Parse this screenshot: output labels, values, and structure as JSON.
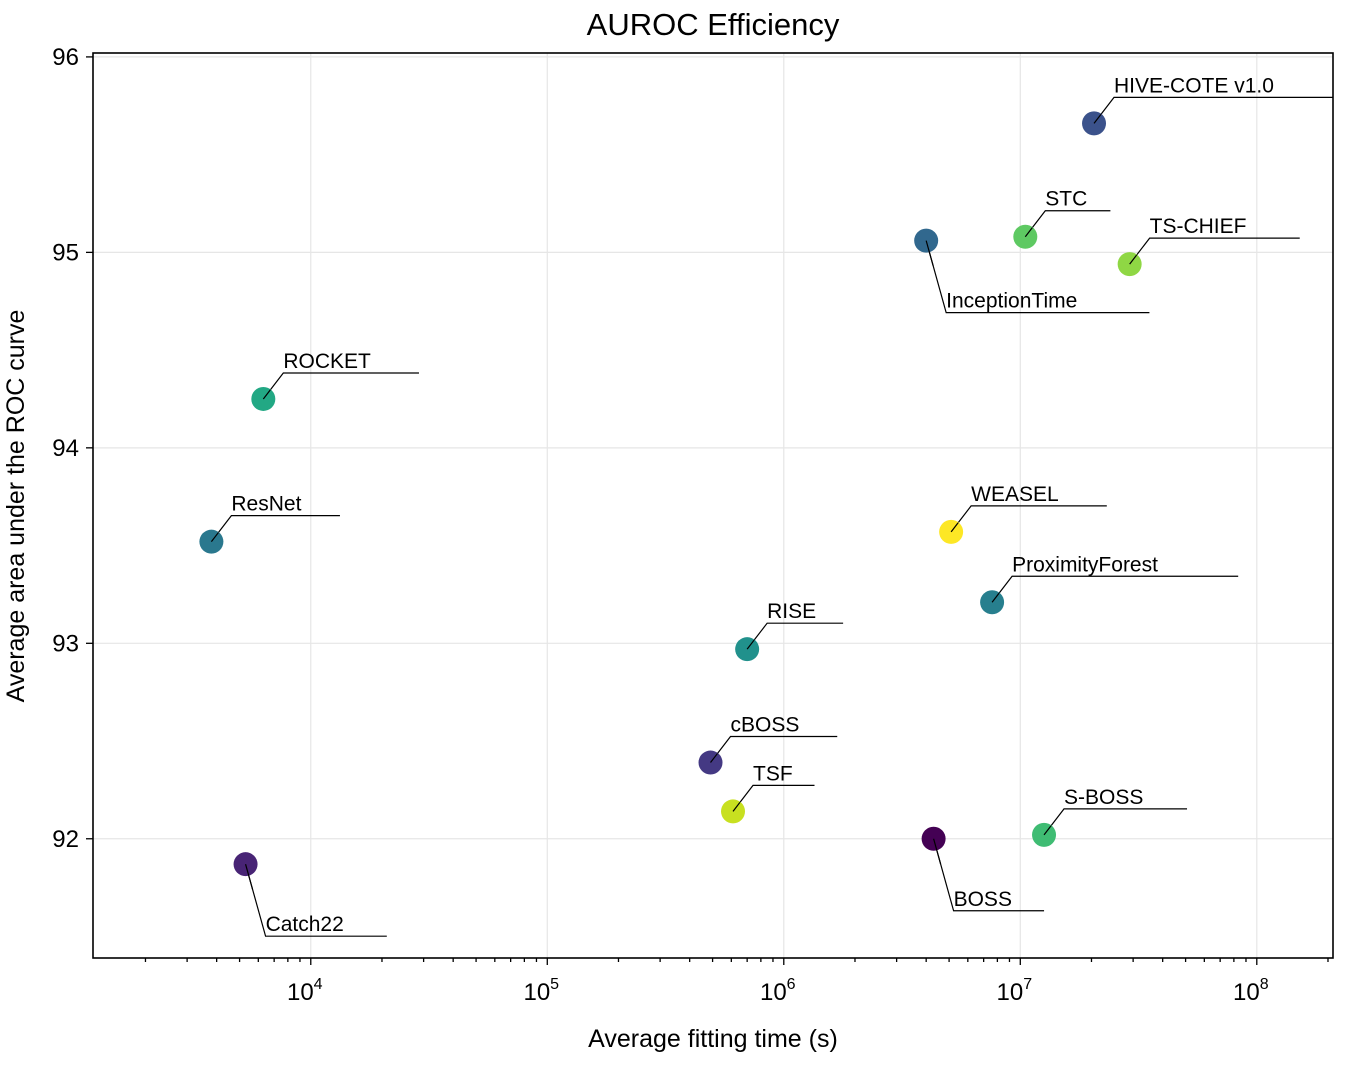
{
  "chart_data": {
    "type": "scatter",
    "title": "AUROC Efficiency",
    "xlabel": "Average fitting time (s)",
    "ylabel": "Average area under the ROC curve",
    "xscale": "log",
    "xlim": [
      1200,
      210000000
    ],
    "ylim": [
      91.39,
      96.02
    ],
    "grid": true,
    "xticks": [
      {
        "base": "10",
        "exp": "4",
        "value": 10000
      },
      {
        "base": "10",
        "exp": "5",
        "value": 100000
      },
      {
        "base": "10",
        "exp": "6",
        "value": 1000000
      },
      {
        "base": "10",
        "exp": "7",
        "value": 10000000
      },
      {
        "base": "10",
        "exp": "8",
        "value": 100000000
      }
    ],
    "yticks": [
      {
        "label": "92",
        "value": 92
      },
      {
        "label": "93",
        "value": 93
      },
      {
        "label": "94",
        "value": 94
      },
      {
        "label": "95",
        "value": 95
      },
      {
        "label": "96",
        "value": 96
      }
    ],
    "points": [
      {
        "name": "HIVE-COTE v1.0",
        "x": 20500000,
        "y": 95.66,
        "color": "#3b528b",
        "label_dir": "up"
      },
      {
        "name": "STC",
        "x": 10500000,
        "y": 95.08,
        "color": "#5ec962",
        "label_dir": "up"
      },
      {
        "name": "TS-CHIEF",
        "x": 29000000,
        "y": 94.94,
        "color": "#8fd744",
        "label_dir": "up"
      },
      {
        "name": "InceptionTime",
        "x": 4000000,
        "y": 95.06,
        "color": "#31688e",
        "label_dir": "down"
      },
      {
        "name": "ROCKET",
        "x": 6300,
        "y": 94.25,
        "color": "#22a884",
        "label_dir": "up"
      },
      {
        "name": "ResNet",
        "x": 3800,
        "y": 93.52,
        "color": "#2a788e",
        "label_dir": "up"
      },
      {
        "name": "WEASEL",
        "x": 5100000,
        "y": 93.57,
        "color": "#fde725",
        "label_dir": "up"
      },
      {
        "name": "ProximityForest",
        "x": 7600000,
        "y": 93.21,
        "color": "#277f8e",
        "label_dir": "up"
      },
      {
        "name": "RISE",
        "x": 700000,
        "y": 92.97,
        "color": "#21918c",
        "label_dir": "up"
      },
      {
        "name": "cBOSS",
        "x": 490000,
        "y": 92.39,
        "color": "#443983",
        "label_dir": "up"
      },
      {
        "name": "TSF",
        "x": 610000,
        "y": 92.14,
        "color": "#c8e020",
        "label_dir": "up"
      },
      {
        "name": "S-BOSS",
        "x": 12600000,
        "y": 92.02,
        "color": "#3fbc73",
        "label_dir": "up"
      },
      {
        "name": "BOSS",
        "x": 4300000,
        "y": 92.0,
        "color": "#440154",
        "label_dir": "down"
      },
      {
        "name": "Catch22",
        "x": 5300,
        "y": 91.87,
        "color": "#482475",
        "label_dir": "down"
      }
    ]
  }
}
